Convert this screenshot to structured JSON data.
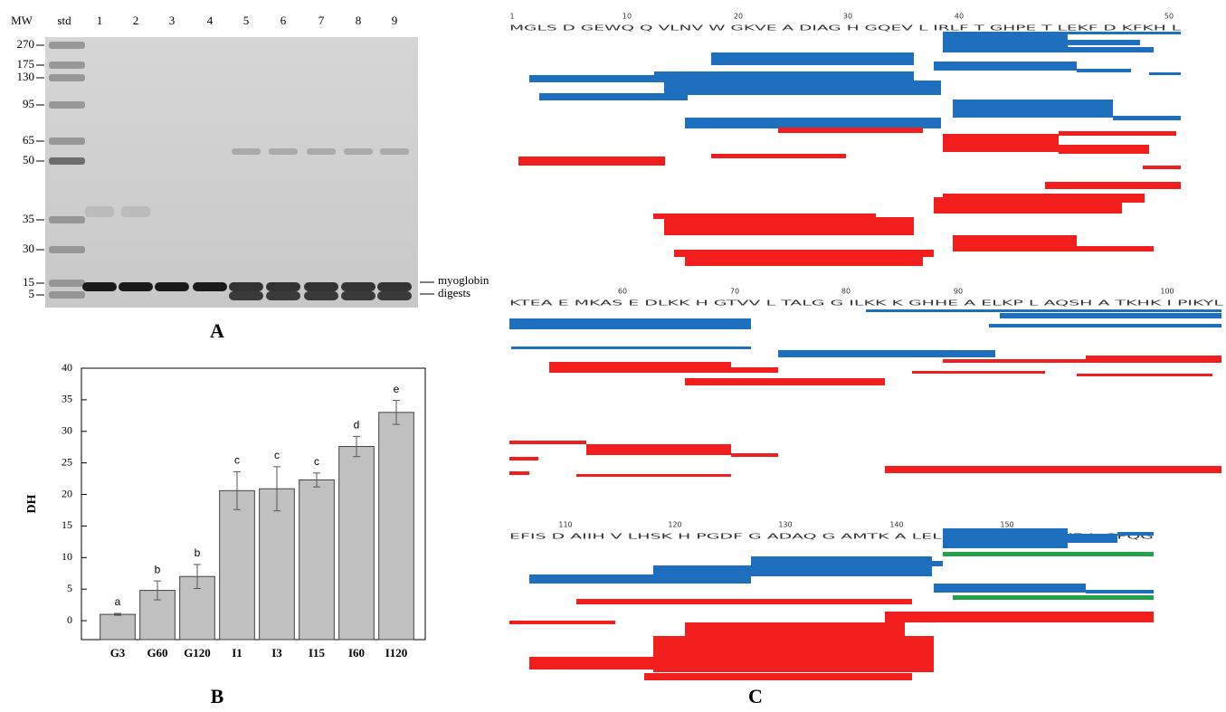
{
  "gel": {
    "mw_label": "MW",
    "std_label": "std",
    "lanes": [
      "1",
      "2",
      "3",
      "4",
      "5",
      "6",
      "7",
      "8",
      "9"
    ],
    "markers": [
      270,
      175,
      130,
      95,
      65,
      50,
      35,
      30,
      15,
      5
    ],
    "band_labels": [
      "myoglobin",
      "digests"
    ],
    "panel": "A"
  },
  "chart_data": {
    "type": "bar",
    "panel": "B",
    "ylabel": "DH",
    "categories": [
      "G3",
      "G60",
      "G120",
      "I1",
      "I3",
      "I15",
      "I60",
      "I120"
    ],
    "values": [
      1.0,
      4.8,
      7.0,
      20.6,
      20.9,
      22.3,
      27.6,
      33.0
    ],
    "errors": [
      0.15,
      1.5,
      1.9,
      3.0,
      3.5,
      1.1,
      1.6,
      1.9
    ],
    "letters": [
      "a",
      "b",
      "b",
      "c",
      "c",
      "c",
      "d",
      "e"
    ],
    "color": "#c0c0c0",
    "ylim": [
      -3,
      40
    ],
    "yticks": [
      0,
      5,
      10,
      15,
      20,
      25,
      30,
      35,
      40
    ]
  },
  "coverage": {
    "panel": "C",
    "rows": [
      {
        "sequence": "MGLS D GEWQ Q VLNV W GKVE A DIAG H GQEV L IRLF T GHPE T LEKF D KFKH L",
        "numbers": [
          1,
          10,
          20,
          30,
          40,
          50
        ]
      },
      {
        "sequence": "KTEA E MKAS E DLKK H GTVV L TALG G ILKK K GHHE A ELKP L AQSH A TKHK I PIKYL",
        "numbers": [
          60,
          70,
          80,
          90,
          100
        ]
      },
      {
        "sequence": "EFIS D AIIH V LHSK H PGDF G ADAQ G AMTK A LELF R NDIA A KYKE L GFQG",
        "numbers": [
          110,
          120,
          130,
          140,
          150
        ]
      }
    ]
  }
}
